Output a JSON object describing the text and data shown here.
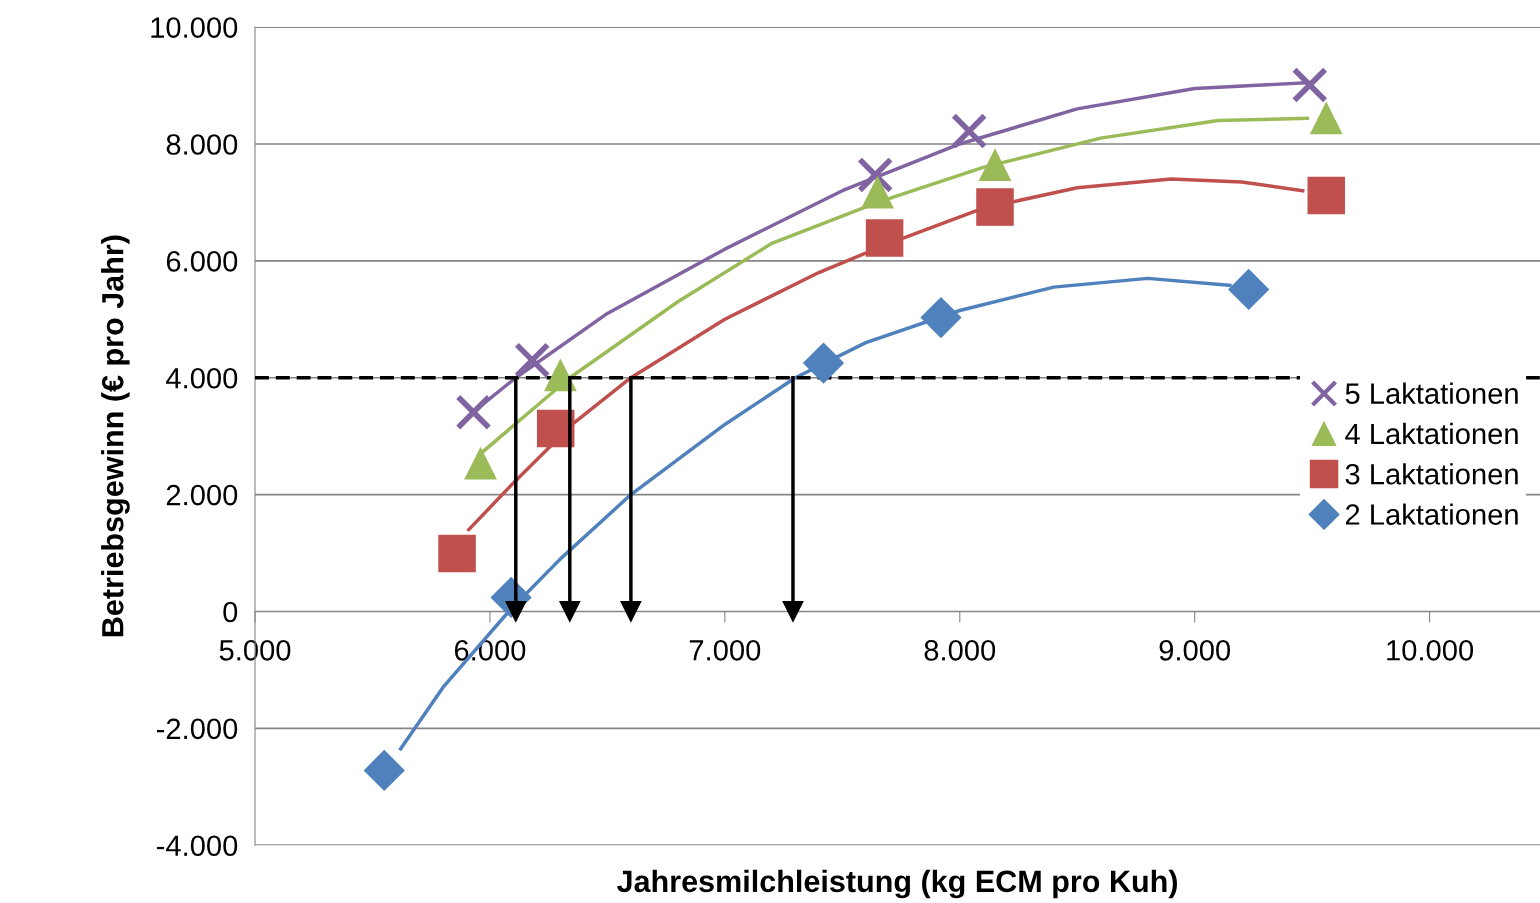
{
  "chart_data": {
    "type": "scatter",
    "xlabel": "Jahresmilchleistung (kg ECM pro Kuh)",
    "ylabel": "Betriebsgewinn (€ pro Jahr)",
    "xlim": [
      5000,
      10470
    ],
    "ylim": [
      -4000,
      10000
    ],
    "xticks": [
      {
        "value": 5000,
        "label": "5.000"
      },
      {
        "value": 6000,
        "label": "6.000"
      },
      {
        "value": 7000,
        "label": "7.000"
      },
      {
        "value": 8000,
        "label": "8.000"
      },
      {
        "value": 9000,
        "label": "9.000"
      },
      {
        "value": 10000,
        "label": "10.000"
      }
    ],
    "yticks": [
      {
        "value": -4000,
        "label": "-4.000"
      },
      {
        "value": -2000,
        "label": "-2.000"
      },
      0,
      {
        "value": 2000,
        "label": "2.000"
      },
      {
        "value": 4000,
        "label": "4.000"
      },
      {
        "value": 6000,
        "label": "6.000"
      },
      {
        "value": 8000,
        "label": "8.000"
      },
      {
        "value": 10000,
        "label": "10.000"
      }
    ],
    "grid": "y",
    "legend": "right",
    "ref_lines": [
      {
        "axis": "y",
        "value": 4000,
        "color": "#000000",
        "line_style": "dashed"
      }
    ],
    "series": [
      {
        "type": "line",
        "color": "#8064a2",
        "x": [
          5980,
          6110,
          6500,
          7000,
          7500,
          8000,
          8500,
          9000,
          9490
        ],
        "values": [
          3580,
          4000,
          5100,
          6200,
          7200,
          8000,
          8600,
          8950,
          9050
        ]
      },
      {
        "type": "line",
        "color": "#9bbb59",
        "x": [
          5960,
          6340,
          6800,
          7200,
          7650,
          8100,
          8600,
          9100,
          9480
        ],
        "values": [
          2700,
          4000,
          5300,
          6300,
          7000,
          7600,
          8100,
          8400,
          8440
        ]
      },
      {
        "type": "line",
        "color": "#c0504d",
        "x": [
          5910,
          6100,
          6350,
          6600,
          7000,
          7400,
          7700,
          8100,
          8500,
          8900,
          9200,
          9460
        ],
        "values": [
          1400,
          2200,
          3200,
          4000,
          5000,
          5800,
          6300,
          6900,
          7250,
          7400,
          7350,
          7200
        ]
      },
      {
        "type": "line",
        "color": "#4f81bd",
        "x": [
          5620,
          5800,
          6080,
          6300,
          6600,
          7000,
          7300,
          7600,
          8000,
          8400,
          8800,
          9150
        ],
        "values": [
          -2350,
          -1300,
          0,
          900,
          2000,
          3200,
          4000,
          4600,
          5150,
          5550,
          5700,
          5580
        ]
      },
      {
        "type": "line",
        "color": "#000000",
        "marker": "triangle",
        "x": [
          6110,
          6110
        ],
        "values": [
          4000,
          0
        ]
      },
      {
        "type": "line",
        "color": "#000000",
        "marker": "triangle",
        "x": [
          6340,
          6340
        ],
        "values": [
          4000,
          0
        ]
      },
      {
        "type": "line",
        "color": "#000000",
        "marker": "triangle",
        "x": [
          6600,
          6600
        ],
        "values": [
          4000,
          0
        ]
      },
      {
        "type": "line",
        "color": "#000000",
        "marker": "triangle",
        "x": [
          7290,
          7290
        ],
        "values": [
          4000,
          0
        ]
      },
      {
        "name": "5 Laktationen",
        "color": "#8064a2",
        "marker": "cross",
        "x": [
          5930,
          6180,
          7640,
          8040,
          9490
        ],
        "values": [
          3410,
          4300,
          7470,
          8220,
          9010
        ]
      },
      {
        "name": "4 Laktationen",
        "color": "#9bbb59",
        "marker": "triangle",
        "x": [
          5960,
          6300,
          7650,
          8150,
          9560
        ],
        "values": [
          2530,
          4040,
          7170,
          7640,
          8440
        ]
      },
      {
        "name": "3 Laktationen",
        "color": "#c0504d",
        "marker": "square",
        "x": [
          5860,
          6280,
          7680,
          8150,
          9560
        ],
        "values": [
          990,
          3130,
          6390,
          6920,
          7120
        ]
      },
      {
        "name": "2 Laktationen",
        "color": "#4f81bd",
        "marker": "diamond",
        "x": [
          5550,
          6090,
          7420,
          7920,
          9230
        ],
        "values": [
          -2720,
          240,
          4250,
          5030,
          5510
        ]
      }
    ]
  }
}
